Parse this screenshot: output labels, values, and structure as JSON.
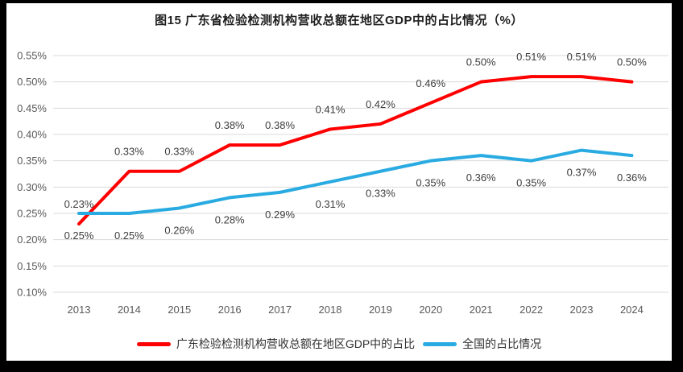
{
  "title": "图15  广东省检验检测机构营收总额在地区GDP中的占比情况（%）",
  "chart_data": {
    "type": "line",
    "title": "图15  广东省检验检测机构营收总额在地区GDP中的占比情况（%）",
    "x_categories": [
      "2013",
      "2014",
      "2015",
      "2016",
      "2017",
      "2018",
      "2019",
      "2020",
      "2021",
      "2022",
      "2023",
      "2024"
    ],
    "ylim": [
      0.1,
      0.55
    ],
    "y_ticks": [
      {
        "value": 0.55,
        "label": "0.55%"
      },
      {
        "value": 0.5,
        "label": "0.50%"
      },
      {
        "value": 0.45,
        "label": "0.45%"
      },
      {
        "value": 0.4,
        "label": "0.40%"
      },
      {
        "value": 0.35,
        "label": "0.35%"
      },
      {
        "value": 0.3,
        "label": "0.30%"
      },
      {
        "value": 0.25,
        "label": "0.25%"
      },
      {
        "value": 0.2,
        "label": "0.20%"
      },
      {
        "value": 0.15,
        "label": "0.15%"
      },
      {
        "value": 0.1,
        "label": "0.10%"
      }
    ],
    "grid": "horizontal",
    "legend_position": "bottom",
    "series": [
      {
        "id": "guangdong",
        "name": "广东检验检测机构营收总额在地区GDP中的占比",
        "color": "#FF0000",
        "label_position": "above",
        "values": [
          0.23,
          0.33,
          0.33,
          0.38,
          0.38,
          0.41,
          0.42,
          0.46,
          0.5,
          0.51,
          0.51,
          0.5
        ],
        "labels": [
          "0.23%",
          "0.33%",
          "0.33%",
          "0.38%",
          "0.38%",
          "0.41%",
          "0.42%",
          "0.46%",
          "0.50%",
          "0.51%",
          "0.51%",
          "0.50%"
        ]
      },
      {
        "id": "national",
        "name": "全国的占比情况",
        "color": "#29ABE2",
        "label_position": "below",
        "values": [
          0.25,
          0.25,
          0.26,
          0.28,
          0.29,
          0.31,
          0.33,
          0.35,
          0.36,
          0.35,
          0.37,
          0.36
        ],
        "labels": [
          "0.25%",
          "0.25%",
          "0.26%",
          "0.28%",
          "0.29%",
          "0.31%",
          "0.33%",
          "0.35%",
          "0.36%",
          "0.35%",
          "0.37%",
          "0.36%"
        ]
      }
    ]
  },
  "colors": {
    "grid": "#D9D9D9",
    "tick_text": "#595959",
    "data_label_text": "#3D3D3D",
    "chart_background": "#FFFFFF",
    "frame_border": "#000000"
  }
}
